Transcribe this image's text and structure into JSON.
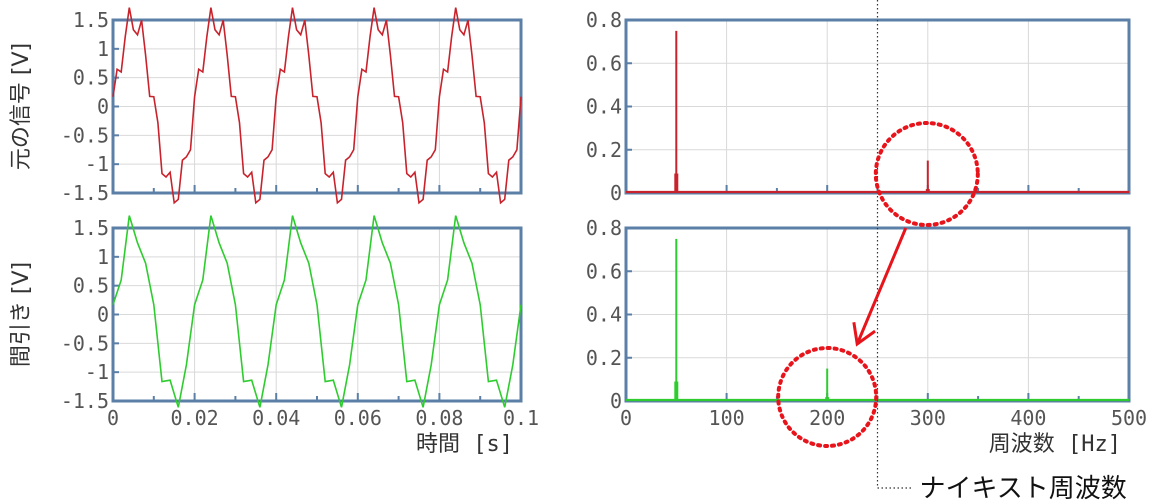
{
  "colors": {
    "original": "#c8232c",
    "decimated": "#2ecc2e",
    "frame": "#5b7fa6",
    "highlight": "#e8141c"
  },
  "chart_data": [
    {
      "type": "line",
      "id": "time-original",
      "ylabel": "元の信号 [V]",
      "xlabel": "",
      "xlim": [
        0,
        0.1
      ],
      "ylim": [
        -1.5,
        1.5
      ],
      "x_ticks": [
        0,
        0.02,
        0.04,
        0.06,
        0.08,
        0.1
      ],
      "y_ticks": [
        "1.5",
        "1",
        "0.5",
        "0",
        "-0.5",
        "-1",
        "-1.5"
      ],
      "x_tick_labels_shown": false,
      "signal": {
        "fundamental_hz": 50,
        "fundamental_amp": 0.75,
        "harmonic_hz": 300,
        "harmonic_amp": 0.15,
        "sample_rate_hz": 1000
      },
      "series": [
        {
          "color": "original"
        }
      ]
    },
    {
      "type": "bar",
      "id": "spec-original",
      "ylabel": "",
      "xlabel": "",
      "xlim": [
        0,
        500
      ],
      "ylim": [
        0,
        0.8
      ],
      "y_ticks": [
        "0.8",
        "0.6",
        "0.4",
        "0.2",
        "0"
      ],
      "x_tick_labels_shown": false,
      "peaks": [
        {
          "x": 50,
          "y": 0.75
        },
        {
          "x": 300,
          "y": 0.15
        }
      ],
      "series": [
        {
          "color": "original"
        }
      ]
    },
    {
      "type": "line",
      "id": "time-decimated",
      "ylabel": "間引き [V]",
      "xlabel": "時間 [s]",
      "xlim": [
        0,
        0.1
      ],
      "ylim": [
        -1.5,
        1.5
      ],
      "x_ticks": [
        "0",
        "0.02",
        "0.04",
        "0.06",
        "0.08",
        "0.1"
      ],
      "y_ticks": [
        "1.5",
        "1",
        "0.5",
        "0",
        "-0.5",
        "-1",
        "-1.5"
      ],
      "x_tick_labels_shown": true,
      "signal": {
        "fundamental_hz": 50,
        "fundamental_amp": 0.75,
        "harmonic_hz": 300,
        "harmonic_amp": 0.15,
        "sample_rate_hz": 500
      },
      "series": [
        {
          "color": "decimated"
        }
      ]
    },
    {
      "type": "bar",
      "id": "spec-decimated",
      "ylabel": "",
      "xlabel": "周波数 [Hz]",
      "xlim": [
        0,
        500
      ],
      "ylim": [
        0,
        0.8
      ],
      "x_ticks": [
        "0",
        "100",
        "200",
        "300",
        "400",
        "500"
      ],
      "y_ticks": [
        "0.8",
        "0.6",
        "0.4",
        "0.2",
        "0"
      ],
      "x_tick_labels_shown": true,
      "peaks": [
        {
          "x": 50,
          "y": 0.75
        },
        {
          "x": 200,
          "y": 0.15
        }
      ],
      "series": [
        {
          "color": "decimated"
        }
      ]
    }
  ],
  "annotations": {
    "nyquist_label": "ナイキスト周波数",
    "nyquist_hz": 250,
    "alias_from_hz": 300,
    "alias_to_hz": 200
  }
}
